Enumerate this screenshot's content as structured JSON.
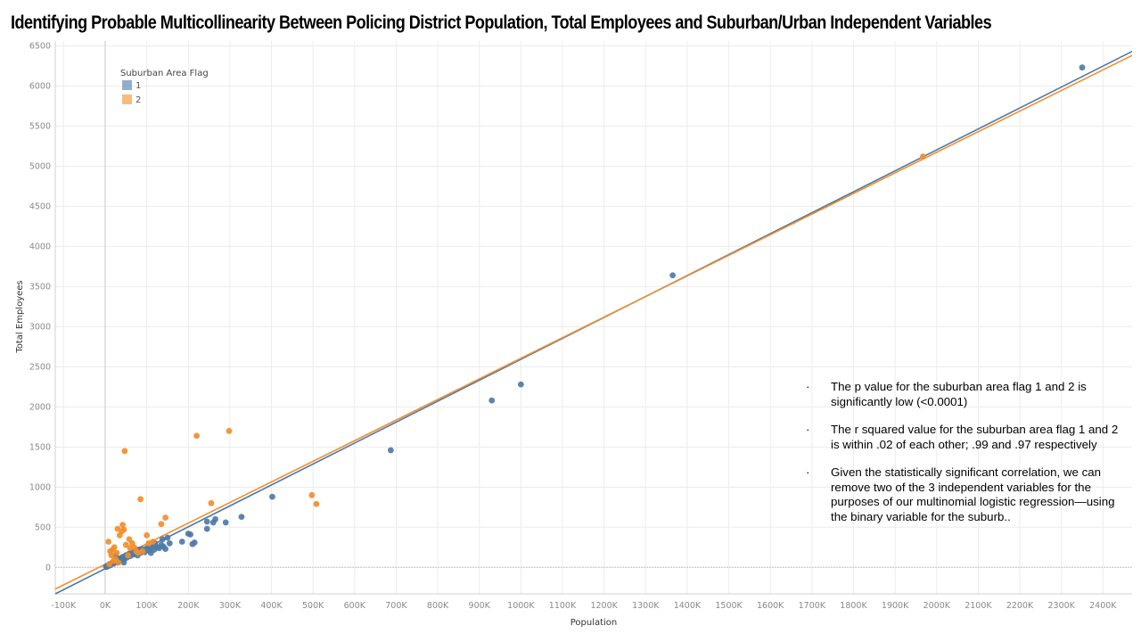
{
  "title": "Identifying Probable Multicollinearity Between Policing District Population, Total Employees and Suburban/Urban Independent Variables",
  "notes": [
    "The p value for the suburban area flag 1 and 2 is significantly low (<0.0001)",
    "The r squared value for the suburban area flag 1 and 2 is within .02 of each other; .99 and .97 respectively",
    "Given the statistically significant correlation, we can remove two of the 3 independent variables for the purposes of our multinomial logistic regression—using the binary variable for the suburb.."
  ],
  "note_bullet": "·",
  "colors": {
    "flag1": "#4e79a7",
    "flag2": "#f28e2b",
    "grid": "#ececec"
  },
  "chart_data": {
    "type": "scatter",
    "title": "",
    "xlabel": "Population",
    "ylabel": "Total Employees",
    "xlim": [
      -120000,
      2470000
    ],
    "ylim": [
      -330,
      6560
    ],
    "x_ticks": [
      -100000,
      0,
      100000,
      200000,
      300000,
      400000,
      500000,
      600000,
      700000,
      800000,
      900000,
      1000000,
      1100000,
      1200000,
      1300000,
      1400000,
      1500000,
      1600000,
      1700000,
      1800000,
      1900000,
      2000000,
      2100000,
      2200000,
      2300000,
      2400000
    ],
    "x_tick_labels": [
      "-100K",
      "0K",
      "100K",
      "200K",
      "300K",
      "400K",
      "500K",
      "600K",
      "700K",
      "800K",
      "900K",
      "1000K",
      "1100K",
      "1200K",
      "1300K",
      "1400K",
      "1500K",
      "1600K",
      "1700K",
      "1800K",
      "1900K",
      "2000K",
      "2100K",
      "2200K",
      "2300K",
      "2400K"
    ],
    "y_ticks": [
      0,
      500,
      1000,
      1500,
      2000,
      2500,
      3000,
      3500,
      4000,
      4500,
      5000,
      5500,
      6000,
      6500
    ],
    "grid": true,
    "legend": {
      "title": "Suburban Area Flag",
      "position": "top-left",
      "entries": [
        "1",
        "2"
      ]
    },
    "series": [
      {
        "name": "1",
        "color": "#4e79a7",
        "points": [
          [
            2000,
            10
          ],
          [
            5000,
            20
          ],
          [
            8000,
            30
          ],
          [
            10000,
            40
          ],
          [
            12000,
            25
          ],
          [
            15000,
            50
          ],
          [
            18000,
            60
          ],
          [
            20000,
            45
          ],
          [
            22000,
            70
          ],
          [
            25000,
            80
          ],
          [
            28000,
            90
          ],
          [
            30000,
            60
          ],
          [
            33000,
            100
          ],
          [
            35000,
            110
          ],
          [
            38000,
            95
          ],
          [
            40000,
            120
          ],
          [
            42000,
            130
          ],
          [
            45000,
            100
          ],
          [
            48000,
            140
          ],
          [
            50000,
            150
          ],
          [
            52000,
            120
          ],
          [
            55000,
            160
          ],
          [
            58000,
            170
          ],
          [
            60000,
            140
          ],
          [
            62000,
            180
          ],
          [
            65000,
            190
          ],
          [
            68000,
            160
          ],
          [
            70000,
            200
          ],
          [
            72000,
            170
          ],
          [
            75000,
            210
          ],
          [
            78000,
            150
          ],
          [
            80000,
            220
          ],
          [
            85000,
            180
          ],
          [
            88000,
            230
          ],
          [
            90000,
            200
          ],
          [
            95000,
            190
          ],
          [
            100000,
            240
          ],
          [
            105000,
            210
          ],
          [
            108000,
            250
          ],
          [
            110000,
            180
          ],
          [
            115000,
            260
          ],
          [
            118000,
            220
          ],
          [
            120000,
            300
          ],
          [
            125000,
            250
          ],
          [
            130000,
            240
          ],
          [
            135000,
            280
          ],
          [
            138000,
            350
          ],
          [
            140000,
            260
          ],
          [
            145000,
            230
          ],
          [
            150000,
            370
          ],
          [
            155000,
            300
          ],
          [
            185000,
            320
          ],
          [
            200000,
            420
          ],
          [
            205000,
            410
          ],
          [
            210000,
            290
          ],
          [
            215000,
            310
          ],
          [
            245000,
            570
          ],
          [
            245000,
            480
          ],
          [
            260000,
            560
          ],
          [
            265000,
            600
          ],
          [
            290000,
            560
          ],
          [
            328000,
            630
          ],
          [
            402000,
            880
          ],
          [
            687000,
            1460
          ],
          [
            930000,
            2080
          ],
          [
            1000000,
            2280
          ],
          [
            1365000,
            3640
          ],
          [
            2350000,
            6230
          ],
          [
            25000,
            150
          ],
          [
            45000,
            60
          ],
          [
            3000,
            5
          ],
          [
            7000,
            15
          ]
        ],
        "trend": [
          [
            -120000,
            -330
          ],
          [
            2470000,
            6430
          ]
        ]
      },
      {
        "name": "2",
        "color": "#f28e2b",
        "points": [
          [
            8000,
            320
          ],
          [
            12000,
            200
          ],
          [
            15000,
            150
          ],
          [
            18000,
            220
          ],
          [
            22000,
            250
          ],
          [
            25000,
            100
          ],
          [
            28000,
            180
          ],
          [
            30000,
            480
          ],
          [
            35000,
            400
          ],
          [
            40000,
            450
          ],
          [
            42000,
            530
          ],
          [
            45000,
            470
          ],
          [
            47000,
            1450
          ],
          [
            50000,
            280
          ],
          [
            55000,
            150
          ],
          [
            58000,
            350
          ],
          [
            60000,
            240
          ],
          [
            65000,
            300
          ],
          [
            70000,
            250
          ],
          [
            75000,
            200
          ],
          [
            80000,
            180
          ],
          [
            85000,
            850
          ],
          [
            90000,
            200
          ],
          [
            100000,
            400
          ],
          [
            105000,
            300
          ],
          [
            115000,
            320
          ],
          [
            135000,
            540
          ],
          [
            145000,
            620
          ],
          [
            220000,
            1640
          ],
          [
            255000,
            800
          ],
          [
            298000,
            1700
          ],
          [
            497000,
            900
          ],
          [
            508000,
            790
          ],
          [
            1967000,
            5120
          ],
          [
            20000,
            80
          ],
          [
            32000,
            60
          ],
          [
            10000,
            40
          ]
        ],
        "trend": [
          [
            -120000,
            -270
          ],
          [
            2470000,
            6380
          ]
        ]
      }
    ]
  }
}
